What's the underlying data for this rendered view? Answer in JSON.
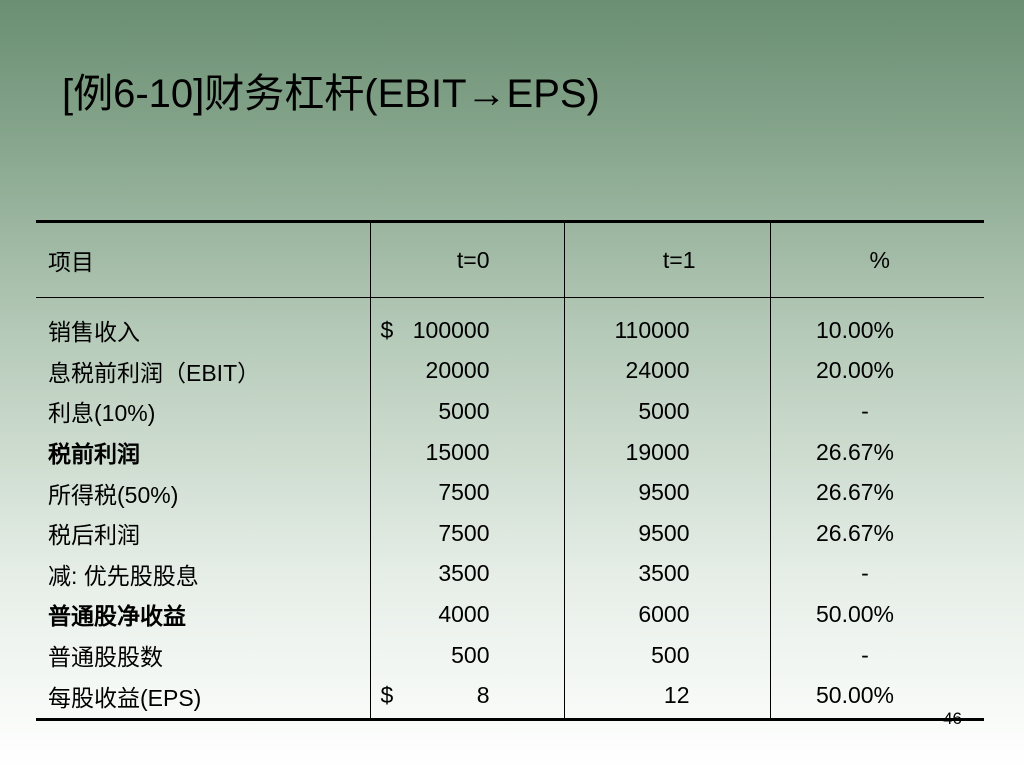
{
  "slide": {
    "title": "[例6-10]财务杠杆(EBIT→EPS)",
    "page_number": "46"
  },
  "table": {
    "headers": {
      "label": "项目",
      "t0": "t=0",
      "t1": "t=1",
      "pct": "%"
    },
    "rows": [
      {
        "label": "销售收入",
        "t0_prefix": "$",
        "t0": "100000",
        "t1": "110000",
        "pct": "10.00%",
        "bold": false
      },
      {
        "label": "息税前利润（EBIT）",
        "t0_prefix": "",
        "t0": "20000",
        "t1": "24000",
        "pct": "20.00%",
        "bold": false
      },
      {
        "label": "利息(10%)",
        "t0_prefix": "",
        "t0": "5000",
        "t1": "5000",
        "pct": "-",
        "bold": false
      },
      {
        "label": "税前利润",
        "t0_prefix": "",
        "t0": "15000",
        "t1": "19000",
        "pct": "26.67%",
        "bold": true
      },
      {
        "label": "所得税(50%)",
        "t0_prefix": "",
        "t0": "7500",
        "t1": "9500",
        "pct": "26.67%",
        "bold": false
      },
      {
        "label": "税后利润",
        "t0_prefix": "",
        "t0": "7500",
        "t1": "9500",
        "pct": "26.67%",
        "bold": false
      },
      {
        "label": "减: 优先股股息",
        "t0_prefix": "",
        "t0": "3500",
        "t1": "3500",
        "pct": "-",
        "bold": false
      },
      {
        "label": "普通股净收益",
        "t0_prefix": "",
        "t0": "4000",
        "t1": "6000",
        "pct": "50.00%",
        "bold": true
      },
      {
        "label": "普通股股数",
        "t0_prefix": "",
        "t0": "500",
        "t1": "500",
        "pct": "-",
        "bold": false
      },
      {
        "label": "每股收益(EPS)",
        "t0_prefix": "$",
        "t0": "8",
        "t1": "12",
        "pct": "50.00%",
        "bold": false
      }
    ]
  }
}
